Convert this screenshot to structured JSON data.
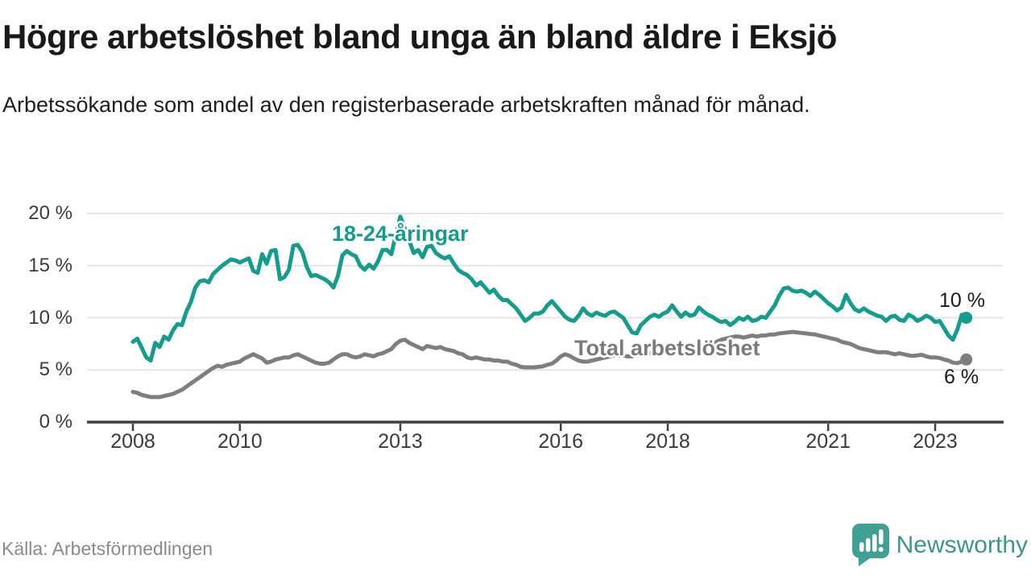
{
  "header": {
    "title": "Högre arbetslöshet bland unga än bland äldre i Eksjö",
    "subtitle": "Arbetssökande som andel av den registerbaserade arbetskraften månad för månad."
  },
  "footer": {
    "source": "Källa: Arbetsförmedlingen",
    "brand": "Newsworthy",
    "logo_icon": "bar-chart-bubble-icon"
  },
  "colors": {
    "young_line": "#149c8d",
    "total_line": "#7e7e7e",
    "total_label": "#7b7b7b",
    "grid": "#e3e3e3",
    "axis": "#3f3f3f",
    "tick_text": "#3b3b3b",
    "title_text": "#191919",
    "source_text": "#8a8a8a",
    "brand_teal": "#3fa195"
  },
  "chart_data": {
    "type": "line",
    "title": "Högre arbetslöshet bland unga än bland äldre i Eksjö",
    "subtitle": "Arbetssökande som andel av den registerbaserade arbetskraften månad för månad.",
    "x_unit": "month",
    "x_start_year": 2008,
    "x_end": "2023-08",
    "ylim": [
      0,
      20
    ],
    "grid": "horizontal",
    "legend_position": "inline-labels",
    "y_ticks": [
      {
        "value": 0,
        "label": "0 %"
      },
      {
        "value": 5,
        "label": "5 %"
      },
      {
        "value": 10,
        "label": "10 %"
      },
      {
        "value": 15,
        "label": "15 %"
      },
      {
        "value": 20,
        "label": "20 %"
      }
    ],
    "x_ticks": [
      {
        "year": 2008,
        "label": "2008"
      },
      {
        "year": 2010,
        "label": "2010"
      },
      {
        "year": 2013,
        "label": "2013"
      },
      {
        "year": 2016,
        "label": "2016"
      },
      {
        "year": 2018,
        "label": "2018"
      },
      {
        "year": 2021,
        "label": "2021"
      },
      {
        "year": 2023,
        "label": "2023"
      }
    ],
    "series": [
      {
        "name": "18-24-åringar",
        "color": "#149c8d",
        "end_label": "10 %",
        "end_value": 10,
        "values": [
          7.7,
          8.0,
          7.1,
          6.2,
          5.9,
          7.6,
          7.2,
          8.2,
          7.9,
          8.8,
          9.4,
          9.3,
          10.6,
          11.5,
          12.9,
          13.5,
          13.6,
          13.4,
          14.2,
          14.6,
          15.0,
          15.3,
          15.6,
          15.5,
          15.3,
          15.5,
          15.7,
          14.5,
          14.3,
          16.1,
          15.2,
          16.4,
          16.5,
          13.7,
          13.9,
          14.6,
          16.9,
          17.0,
          16.3,
          14.9,
          14.0,
          14.1,
          13.9,
          13.7,
          13.4,
          12.9,
          14.0,
          16.0,
          16.4,
          16.1,
          15.9,
          15.0,
          14.6,
          15.1,
          14.7,
          15.4,
          16.5,
          16.5,
          16.1,
          18.0,
          19.7,
          18.6,
          17.4,
          16.2,
          16.5,
          15.8,
          16.8,
          16.9,
          16.2,
          15.9,
          15.7,
          15.9,
          15.2,
          14.6,
          14.3,
          14.1,
          13.7,
          13.1,
          13.4,
          12.9,
          12.4,
          12.7,
          12.1,
          11.7,
          11.7,
          11.3,
          10.9,
          10.3,
          9.7,
          10.0,
          10.4,
          10.4,
          10.6,
          11.2,
          11.6,
          11.1,
          10.6,
          10.1,
          9.8,
          9.7,
          10.2,
          10.9,
          10.4,
          10.2,
          10.5,
          10.3,
          10.2,
          10.5,
          10.6,
          10.3,
          10.0,
          9.3,
          8.6,
          8.5,
          9.3,
          9.7,
          10.1,
          10.3,
          10.1,
          10.4,
          10.6,
          11.2,
          10.6,
          10.1,
          10.5,
          10.2,
          10.3,
          11.0,
          10.6,
          10.3,
          10.1,
          9.8,
          9.6,
          9.7,
          9.3,
          9.6,
          10.0,
          9.8,
          10.1,
          9.7,
          9.8,
          10.1,
          10.0,
          10.6,
          11.2,
          12.1,
          12.8,
          12.9,
          12.6,
          12.5,
          12.6,
          12.4,
          12.1,
          12.5,
          12.2,
          11.8,
          11.4,
          11.1,
          10.7,
          11.0,
          12.2,
          11.4,
          10.8,
          10.6,
          10.9,
          10.6,
          10.4,
          10.2,
          10.1,
          9.7,
          10.1,
          10.2,
          9.8,
          9.7,
          10.3,
          10.1,
          9.7,
          9.9,
          10.2,
          10.0,
          9.6,
          9.7,
          9.0,
          8.3,
          7.9,
          8.9,
          10.3,
          10.0
        ]
      },
      {
        "name": "Total arbetslöshet",
        "color": "#7e7e7e",
        "end_label": "6 %",
        "end_value": 6,
        "values": [
          2.9,
          2.8,
          2.6,
          2.5,
          2.4,
          2.4,
          2.4,
          2.5,
          2.6,
          2.7,
          2.9,
          3.1,
          3.4,
          3.7,
          4.0,
          4.3,
          4.6,
          4.9,
          5.2,
          5.4,
          5.3,
          5.5,
          5.6,
          5.7,
          5.8,
          6.1,
          6.3,
          6.5,
          6.3,
          6.1,
          5.7,
          5.8,
          6.0,
          6.1,
          6.2,
          6.2,
          6.4,
          6.5,
          6.3,
          6.1,
          5.9,
          5.7,
          5.6,
          5.6,
          5.7,
          6.0,
          6.3,
          6.5,
          6.5,
          6.3,
          6.2,
          6.3,
          6.5,
          6.4,
          6.3,
          6.5,
          6.6,
          6.8,
          7.0,
          7.5,
          7.8,
          7.9,
          7.6,
          7.4,
          7.2,
          7.0,
          7.3,
          7.2,
          7.1,
          7.2,
          7.0,
          6.9,
          6.8,
          6.6,
          6.5,
          6.2,
          6.1,
          6.2,
          6.1,
          6.0,
          6.0,
          5.9,
          5.9,
          5.8,
          5.8,
          5.6,
          5.5,
          5.3,
          5.25,
          5.25,
          5.25,
          5.3,
          5.35,
          5.5,
          5.6,
          5.9,
          6.3,
          6.5,
          6.35,
          6.1,
          5.9,
          5.8,
          5.8,
          5.9,
          6.0,
          6.1,
          6.2,
          6.3,
          6.4,
          6.4,
          6.4,
          6.3,
          6.3,
          6.4,
          6.5,
          6.5,
          6.6,
          6.6,
          6.7,
          6.7,
          6.8,
          6.8,
          6.9,
          6.9,
          7.0,
          7.0,
          7.1,
          7.1,
          7.2,
          7.3,
          7.5,
          7.7,
          7.9,
          8.0,
          8.1,
          8.2,
          8.2,
          8.1,
          8.2,
          8.3,
          8.2,
          8.3,
          8.3,
          8.4,
          8.4,
          8.5,
          8.55,
          8.6,
          8.65,
          8.6,
          8.55,
          8.5,
          8.45,
          8.4,
          8.3,
          8.2,
          8.1,
          8.0,
          7.9,
          7.7,
          7.6,
          7.5,
          7.3,
          7.1,
          7.0,
          6.9,
          6.8,
          6.7,
          6.7,
          6.7,
          6.6,
          6.5,
          6.6,
          6.5,
          6.4,
          6.35,
          6.4,
          6.45,
          6.3,
          6.2,
          6.2,
          6.15,
          6.0,
          5.9,
          5.7,
          5.65,
          5.8,
          6.0
        ]
      }
    ]
  }
}
